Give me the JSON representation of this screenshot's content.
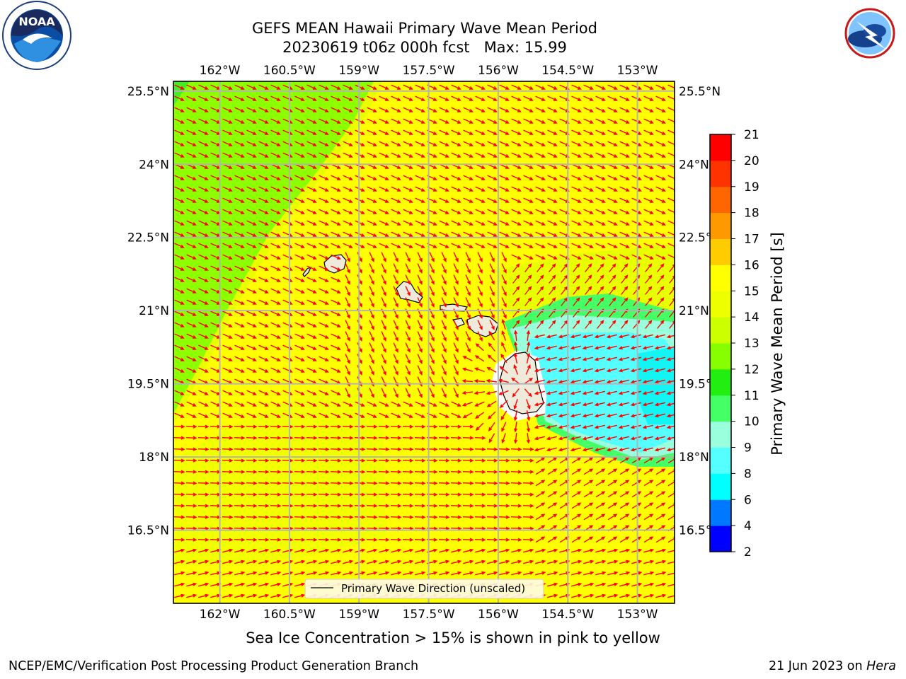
{
  "title": {
    "line1": "GEFS MEAN Hawaii Primary Wave Mean Period",
    "line2": "20230619 t06z 000h fcst   Max: 15.99"
  },
  "logos": {
    "left": {
      "icon": "noaa-logo",
      "text": "NOAA",
      "ring_text": "NATIONAL OCEANIC AND ATMOSPHERIC ADMINISTRATION · U.S. DEPARTMENT OF COMMERCE"
    },
    "right": {
      "icon": "nws-logo",
      "ring_text": "NATIONAL WEATHER SERVICE"
    }
  },
  "map": {
    "lon_ticks": [
      "162°W",
      "160.5°W",
      "159°W",
      "157.5°W",
      "156°W",
      "154.5°W",
      "153°W"
    ],
    "lat_ticks": [
      "25.5°N",
      "24°N",
      "22.5°N",
      "21°N",
      "19.5°N",
      "18°N",
      "16.5°N"
    ],
    "lon_values": [
      -162,
      -160.5,
      -159,
      -157.5,
      -156,
      -154.5,
      -153
    ],
    "lat_values": [
      25.5,
      24,
      22.5,
      21,
      19.5,
      18,
      16.5
    ],
    "lon_range": [
      -163,
      -152.2
    ],
    "lat_range": [
      15,
      25.7
    ],
    "grid": true,
    "legend": {
      "label": "Primary Wave Direction (unscaled)",
      "placement": "bottom-center"
    },
    "arrow_color": "#ff0000",
    "land_color": "#efebdb"
  },
  "colorbar": {
    "label": "Primary Wave Mean Period [s]",
    "tick_labels": [
      "2",
      "4",
      "6",
      "8",
      "9",
      "10",
      "11",
      "12",
      "13",
      "14",
      "15",
      "16",
      "17",
      "18",
      "19",
      "20",
      "21"
    ],
    "levels": [
      2,
      4,
      6,
      8,
      9,
      10,
      11,
      12,
      13,
      14,
      15,
      16,
      17,
      18,
      19,
      20,
      21
    ],
    "colors": [
      "#0000ff",
      "#0078ff",
      "#00ffff",
      "#55ffff",
      "#99ffdd",
      "#44ff66",
      "#22ee11",
      "#88ff00",
      "#ccff00",
      "#eeff00",
      "#ffff00",
      "#ffcc00",
      "#ff9900",
      "#ff6600",
      "#ff3300",
      "#ff0000"
    ]
  },
  "subcaption": "Sea Ice Concentration > 15% is shown in pink to yellow",
  "footer": {
    "left": "NCEP/EMC/Verification Post Processing Product Generation Branch",
    "right_date": "21 Jun 2023 on ",
    "right_machine": "Hera"
  }
}
